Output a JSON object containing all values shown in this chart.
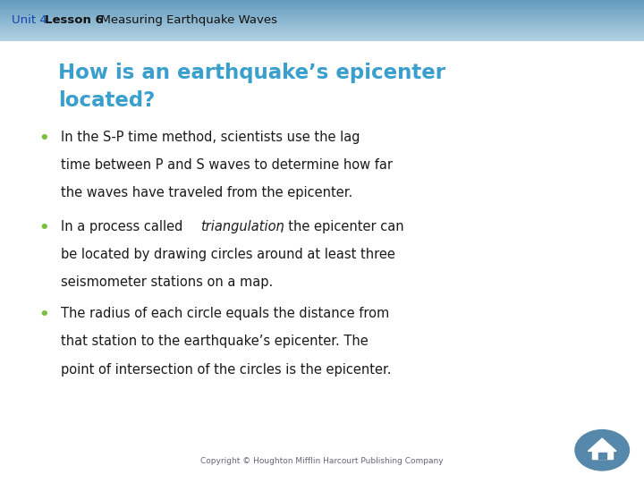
{
  "header_text_unit": "Unit 4 ",
  "header_text_lesson": "Lesson 6",
  "header_text_rest": "  Measuring Earthquake Waves",
  "header_bg_top": "#8ab8d0",
  "header_bg_bottom": "#bdd4e4",
  "body_bg_color": "#d8e8f0",
  "title_line1": "How is an earthquake’s epicenter",
  "title_line2": "located?",
  "title_color": "#3a9fcc",
  "bullet_color": "#7abf3a",
  "bullet_text_color": "#1a1a1a",
  "bullet1_line1": "In the S-P time method, scientists use the lag",
  "bullet1_line2": "time between P and S waves to determine how far",
  "bullet1_line3": "the waves have traveled from the epicenter.",
  "bullet2_line1_pre": "In a process called ",
  "bullet2_line1_italic": "triangulation",
  "bullet2_line1_post": ", the epicenter can",
  "bullet2_line2": "be located by drawing circles around at least three",
  "bullet2_line3": "seismometer stations on a map.",
  "bullet3_line1": "The radius of each circle equals the distance from",
  "bullet3_line2": "that station to the earthquake’s epicenter. The",
  "bullet3_line3": "point of intersection of the circles is the epicenter.",
  "copyright": "Copyright © Houghton Mifflin Harcourt Publishing Company",
  "copyright_color": "#666677",
  "home_circle_color": "#5588aa",
  "figwidth": 7.2,
  "figheight": 5.4,
  "dpi": 100
}
